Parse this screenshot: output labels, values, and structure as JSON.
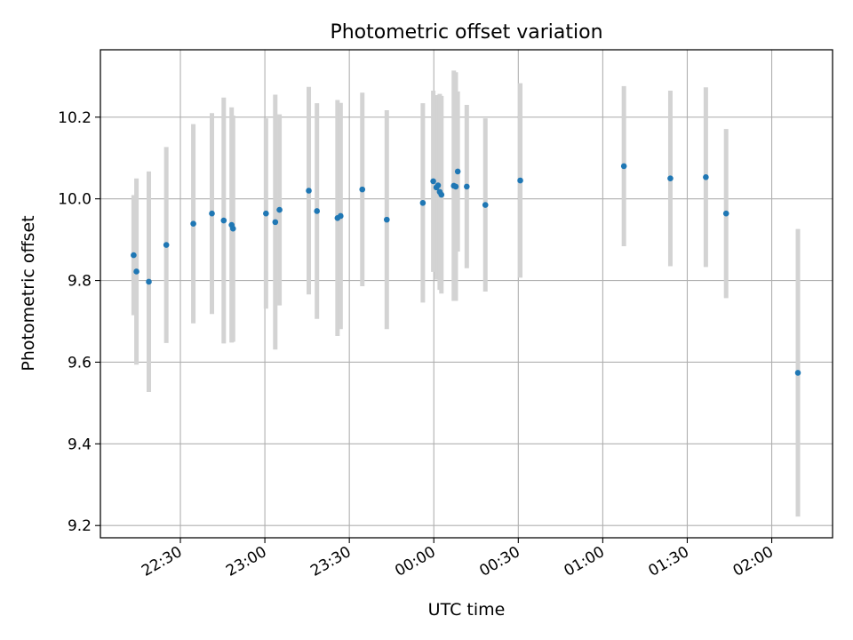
{
  "chart_data": {
    "type": "scatter",
    "title": "Photometric offset variation",
    "xlabel": "UTC time",
    "ylabel": "Photometric offset",
    "x_tick_labels": [
      "22:30",
      "23:00",
      "23:30",
      "00:00",
      "00:30",
      "01:00",
      "01:30",
      "02:00"
    ],
    "x_tick_minutes": [
      0,
      30,
      60,
      90,
      120,
      150,
      180,
      210
    ],
    "y_ticks": [
      9.2,
      9.4,
      9.6,
      9.8,
      10.0,
      10.2
    ],
    "y_tick_labels": [
      "9.2",
      "9.4",
      "9.6",
      "9.8",
      "10.0",
      "10.2"
    ],
    "xlim_minutes": [
      -28.4,
      231.6
    ],
    "ylim": [
      9.17,
      10.365
    ],
    "grid": true,
    "marker_color": "#1f77b4",
    "errorbar_color": "#d3d3d3",
    "points": [
      {
        "t": -16.6,
        "y": 9.862,
        "err": 0.147
      },
      {
        "t": -15.6,
        "y": 9.822,
        "err": 0.228
      },
      {
        "t": -11.2,
        "y": 9.797,
        "err": 0.27
      },
      {
        "t": -5.0,
        "y": 9.887,
        "err": 0.24
      },
      {
        "t": 4.6,
        "y": 9.939,
        "err": 0.244
      },
      {
        "t": 11.2,
        "y": 9.964,
        "err": 0.246
      },
      {
        "t": 15.4,
        "y": 9.947,
        "err": 0.301
      },
      {
        "t": 18.2,
        "y": 9.936,
        "err": 0.288
      },
      {
        "t": 18.7,
        "y": 9.927,
        "err": 0.277
      },
      {
        "t": 30.4,
        "y": 9.964,
        "err": 0.233
      },
      {
        "t": 33.7,
        "y": 9.943,
        "err": 0.312
      },
      {
        "t": 35.2,
        "y": 9.973,
        "err": 0.234
      },
      {
        "t": 45.6,
        "y": 10.02,
        "err": 0.254
      },
      {
        "t": 48.5,
        "y": 9.97,
        "err": 0.264
      },
      {
        "t": 55.8,
        "y": 9.953,
        "err": 0.289
      },
      {
        "t": 56.9,
        "y": 9.958,
        "err": 0.277
      },
      {
        "t": 64.6,
        "y": 10.023,
        "err": 0.237
      },
      {
        "t": 73.3,
        "y": 9.949,
        "err": 0.268
      },
      {
        "t": 86.1,
        "y": 9.99,
        "err": 0.244
      },
      {
        "t": 89.8,
        "y": 10.043,
        "err": 0.222
      },
      {
        "t": 90.9,
        "y": 10.028,
        "err": 0.226
      },
      {
        "t": 91.5,
        "y": 10.033,
        "err": 0.221
      },
      {
        "t": 92.1,
        "y": 10.017,
        "err": 0.24
      },
      {
        "t": 92.7,
        "y": 10.01,
        "err": 0.242
      },
      {
        "t": 97.1,
        "y": 10.032,
        "err": 0.282
      },
      {
        "t": 97.8,
        "y": 10.03,
        "err": 0.28
      },
      {
        "t": 98.5,
        "y": 10.067,
        "err": 0.196
      },
      {
        "t": 101.7,
        "y": 10.03,
        "err": 0.2
      },
      {
        "t": 108.3,
        "y": 9.985,
        "err": 0.212
      },
      {
        "t": 120.7,
        "y": 10.045,
        "err": 0.238
      },
      {
        "t": 157.5,
        "y": 10.08,
        "err": 0.196
      },
      {
        "t": 174.0,
        "y": 10.05,
        "err": 0.215
      },
      {
        "t": 186.6,
        "y": 10.053,
        "err": 0.22
      },
      {
        "t": 193.8,
        "y": 9.964,
        "err": 0.207
      },
      {
        "t": 219.3,
        "y": 9.574,
        "err": 0.352
      }
    ]
  }
}
